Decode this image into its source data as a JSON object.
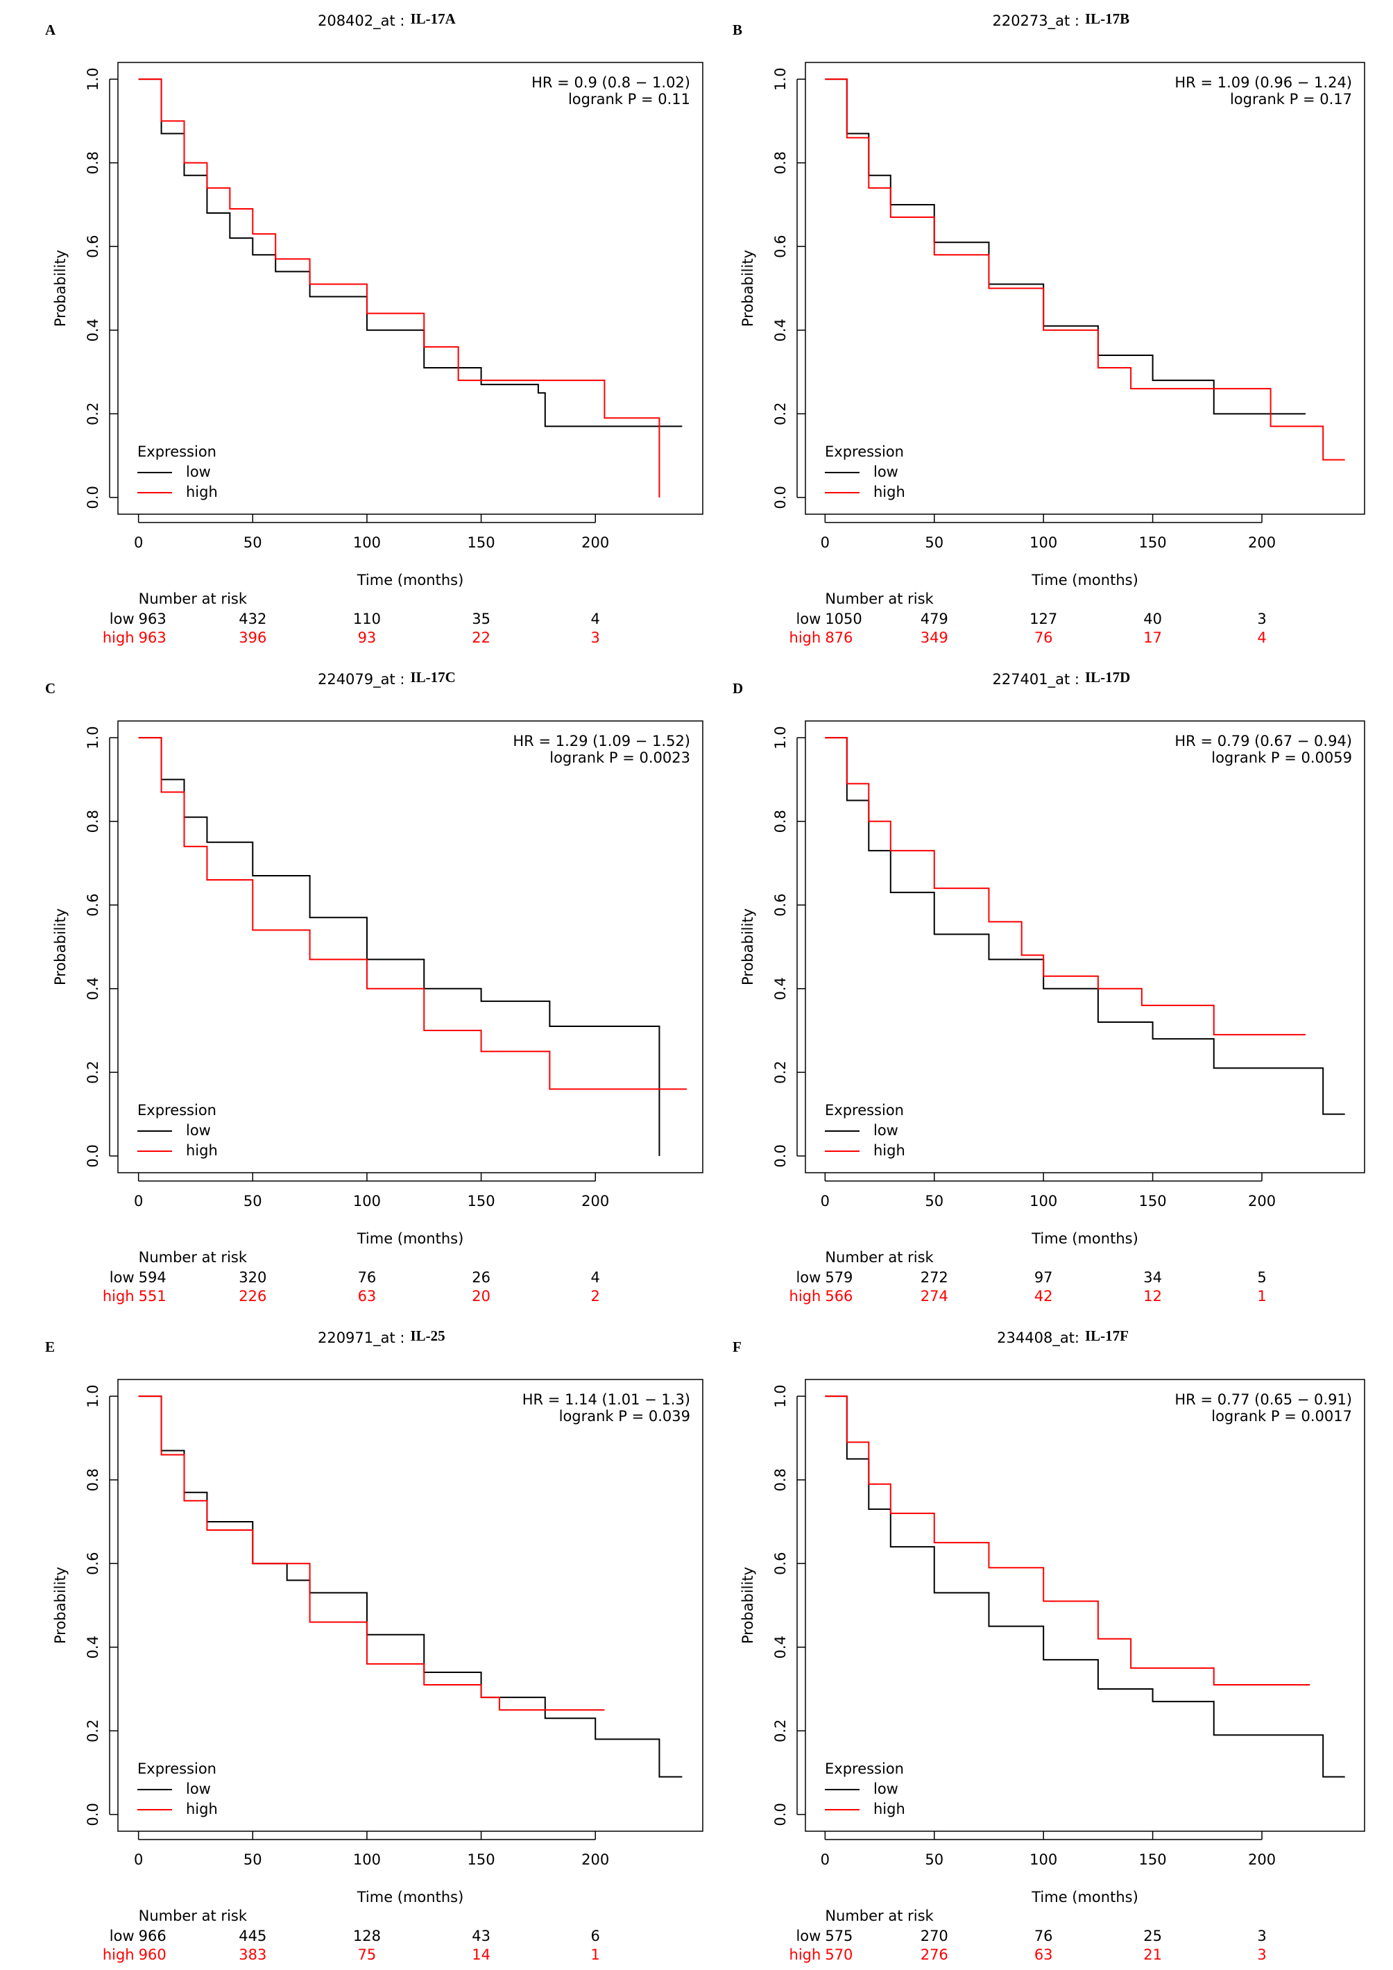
{
  "chart_data": [
    {
      "type": "line",
      "step": "post",
      "panel": "A",
      "probe": "208402_at :",
      "gene": "IL-17A",
      "annotations": [
        "HR = 0.9 (0.8 − 1.02)",
        "logrank P = 0.11"
      ],
      "xlabel": "Time (months)",
      "ylabel": "Probability",
      "legend_title": "Expression",
      "legend": "bottomleft",
      "risk_title": "Number at risk",
      "xlim": [
        -9,
        247
      ],
      "ylim": [
        -0.04,
        1.04
      ],
      "xticks": [
        0,
        50,
        100,
        150,
        200
      ],
      "yticks": [
        {
          "value": 0,
          "label": "0.0"
        },
        0.2,
        0.4,
        0.6,
        0.8,
        {
          "value": 1,
          "label": "1.0"
        }
      ],
      "series": [
        {
          "name": "low",
          "color": "#000000",
          "x": [
            0,
            10,
            20,
            30,
            40,
            50,
            60,
            75,
            100,
            125,
            150,
            175,
            178,
            238
          ],
          "values": [
            1,
            0.87,
            0.77,
            0.68,
            0.62,
            0.58,
            0.54,
            0.48,
            0.4,
            0.31,
            0.27,
            0.25,
            0.17,
            0.17
          ],
          "at_risk": [
            963,
            432,
            110,
            35,
            4
          ]
        },
        {
          "name": "high",
          "color": "#ff0000",
          "x": [
            0,
            10,
            20,
            30,
            40,
            50,
            60,
            75,
            100,
            125,
            140,
            204,
            204,
            228,
            228
          ],
          "values": [
            1,
            0.9,
            0.8,
            0.74,
            0.69,
            0.63,
            0.57,
            0.51,
            0.44,
            0.36,
            0.28,
            0.28,
            0.19,
            0.19,
            0
          ],
          "at_risk": [
            963,
            396,
            93,
            22,
            3
          ]
        }
      ]
    },
    {
      "type": "line",
      "step": "post",
      "panel": "B",
      "probe": "220273_at :",
      "gene": "IL-17B",
      "annotations": [
        "HR = 1.09 (0.96 − 1.24)",
        "logrank P = 0.17"
      ],
      "xlabel": "Time (months)",
      "ylabel": "Probability",
      "legend_title": "Expression",
      "legend": "bottomleft",
      "risk_title": "Number at risk",
      "xlim": [
        -9,
        247
      ],
      "ylim": [
        -0.04,
        1.04
      ],
      "xticks": [
        0,
        50,
        100,
        150,
        200
      ],
      "yticks": [
        {
          "value": 0,
          "label": "0.0"
        },
        0.2,
        0.4,
        0.6,
        0.8,
        {
          "value": 1,
          "label": "1.0"
        }
      ],
      "series": [
        {
          "name": "low",
          "color": "#000000",
          "x": [
            0,
            10,
            20,
            30,
            50,
            75,
            100,
            125,
            150,
            175,
            178,
            220
          ],
          "values": [
            1,
            0.87,
            0.77,
            0.7,
            0.61,
            0.51,
            0.41,
            0.34,
            0.28,
            0.28,
            0.2,
            0.2
          ],
          "at_risk": [
            1050,
            479,
            127,
            40,
            3
          ]
        },
        {
          "name": "high",
          "color": "#ff0000",
          "x": [
            0,
            10,
            20,
            30,
            50,
            75,
            100,
            125,
            140,
            175,
            204,
            204,
            228,
            228,
            238
          ],
          "values": [
            1,
            0.86,
            0.74,
            0.67,
            0.58,
            0.5,
            0.4,
            0.31,
            0.26,
            0.26,
            0.26,
            0.17,
            0.17,
            0.09,
            0.09
          ],
          "at_risk": [
            876,
            349,
            76,
            17,
            4
          ]
        }
      ]
    },
    {
      "type": "line",
      "step": "post",
      "panel": "C",
      "probe": "224079_at :",
      "gene": "IL-17C",
      "annotations": [
        "HR = 1.29 (1.09 − 1.52)",
        "logrank P = 0.0023"
      ],
      "xlabel": "Time (months)",
      "ylabel": "Probability",
      "legend_title": "Expression",
      "legend": "bottomleft",
      "risk_title": "Number at risk",
      "xlim": [
        -9,
        247
      ],
      "ylim": [
        -0.04,
        1.04
      ],
      "xticks": [
        0,
        50,
        100,
        150,
        200
      ],
      "yticks": [
        {
          "value": 0,
          "label": "0.0"
        },
        0.2,
        0.4,
        0.6,
        0.8,
        {
          "value": 1,
          "label": "1.0"
        }
      ],
      "series": [
        {
          "name": "low",
          "color": "#000000",
          "x": [
            0,
            10,
            20,
            30,
            50,
            75,
            100,
            125,
            150,
            175,
            180,
            228,
            228
          ],
          "values": [
            1,
            0.9,
            0.81,
            0.75,
            0.67,
            0.57,
            0.47,
            0.4,
            0.37,
            0.37,
            0.31,
            0.31,
            0
          ],
          "at_risk": [
            594,
            320,
            76,
            26,
            4
          ]
        },
        {
          "name": "high",
          "color": "#ff0000",
          "x": [
            0,
            10,
            20,
            30,
            50,
            75,
            100,
            125,
            150,
            175,
            180,
            240
          ],
          "values": [
            1,
            0.87,
            0.74,
            0.66,
            0.54,
            0.47,
            0.4,
            0.3,
            0.25,
            0.25,
            0.16,
            0.16
          ],
          "at_risk": [
            551,
            226,
            63,
            20,
            2
          ]
        }
      ]
    },
    {
      "type": "line",
      "step": "post",
      "panel": "D",
      "probe": "227401_at :",
      "gene": "IL-17D",
      "annotations": [
        "HR = 0.79 (0.67 − 0.94)",
        "logrank P = 0.0059"
      ],
      "xlabel": "Time (months)",
      "ylabel": "Probability",
      "legend_title": "Expression",
      "legend": "bottomleft",
      "risk_title": "Number at risk",
      "xlim": [
        -9,
        247
      ],
      "ylim": [
        -0.04,
        1.04
      ],
      "xticks": [
        0,
        50,
        100,
        150,
        200
      ],
      "yticks": [
        {
          "value": 0,
          "label": "0.0"
        },
        0.2,
        0.4,
        0.6,
        0.8,
        {
          "value": 1,
          "label": "1.0"
        }
      ],
      "series": [
        {
          "name": "low",
          "color": "#000000",
          "x": [
            0,
            10,
            20,
            30,
            50,
            75,
            100,
            125,
            150,
            175,
            178,
            228,
            228,
            238
          ],
          "values": [
            1,
            0.85,
            0.73,
            0.63,
            0.53,
            0.47,
            0.4,
            0.32,
            0.28,
            0.28,
            0.21,
            0.21,
            0.1,
            0.1
          ],
          "at_risk": [
            579,
            272,
            97,
            34,
            5
          ]
        },
        {
          "name": "high",
          "color": "#ff0000",
          "x": [
            0,
            10,
            20,
            30,
            50,
            75,
            90,
            100,
            125,
            145,
            178,
            178,
            220
          ],
          "values": [
            1,
            0.89,
            0.8,
            0.73,
            0.64,
            0.56,
            0.48,
            0.43,
            0.4,
            0.36,
            0.36,
            0.29,
            0.29
          ],
          "at_risk": [
            566,
            274,
            42,
            12,
            1
          ]
        }
      ]
    },
    {
      "type": "line",
      "step": "post",
      "panel": "E",
      "probe": "220971_at :",
      "gene": "IL-25",
      "annotations": [
        "HR = 1.14 (1.01 − 1.3)",
        "logrank P = 0.039"
      ],
      "xlabel": "Time (months)",
      "ylabel": "Probability",
      "legend_title": "Expression",
      "legend": "bottomleft",
      "risk_title": "Number at risk",
      "xlim": [
        -9,
        247
      ],
      "ylim": [
        -0.04,
        1.04
      ],
      "xticks": [
        0,
        50,
        100,
        150,
        200
      ],
      "yticks": [
        {
          "value": 0,
          "label": "0.0"
        },
        0.2,
        0.4,
        0.6,
        0.8,
        {
          "value": 1,
          "label": "1.0"
        }
      ],
      "series": [
        {
          "name": "low",
          "color": "#000000",
          "x": [
            0,
            10,
            20,
            30,
            50,
            65,
            75,
            100,
            125,
            150,
            175,
            178,
            200,
            200,
            228,
            228,
            238
          ],
          "values": [
            1,
            0.87,
            0.77,
            0.7,
            0.6,
            0.56,
            0.53,
            0.43,
            0.34,
            0.28,
            0.28,
            0.23,
            0.23,
            0.18,
            0.18,
            0.09,
            0.09
          ],
          "at_risk": [
            966,
            445,
            128,
            43,
            6
          ]
        },
        {
          "name": "high",
          "color": "#ff0000",
          "x": [
            0,
            10,
            20,
            30,
            50,
            75,
            100,
            125,
            150,
            158,
            204
          ],
          "values": [
            1,
            0.86,
            0.75,
            0.68,
            0.6,
            0.46,
            0.36,
            0.31,
            0.28,
            0.25,
            0.25
          ],
          "at_risk": [
            960,
            383,
            75,
            14,
            1
          ]
        }
      ]
    },
    {
      "type": "line",
      "step": "post",
      "panel": "F",
      "probe": "234408_at:",
      "gene": "IL-17F",
      "annotations": [
        "HR = 0.77 (0.65 − 0.91)",
        "logrank P = 0.0017"
      ],
      "xlabel": "Time (months)",
      "ylabel": "Probability",
      "legend_title": "Expression",
      "legend": "bottomleft",
      "risk_title": "Number at risk",
      "xlim": [
        -9,
        247
      ],
      "ylim": [
        -0.04,
        1.04
      ],
      "xticks": [
        0,
        50,
        100,
        150,
        200
      ],
      "yticks": [
        {
          "value": 0,
          "label": "0.0"
        },
        0.2,
        0.4,
        0.6,
        0.8,
        {
          "value": 1,
          "label": "1.0"
        }
      ],
      "series": [
        {
          "name": "low",
          "color": "#000000",
          "x": [
            0,
            10,
            20,
            30,
            50,
            75,
            100,
            125,
            150,
            175,
            178,
            228,
            228,
            238
          ],
          "values": [
            1,
            0.85,
            0.73,
            0.64,
            0.53,
            0.45,
            0.37,
            0.3,
            0.27,
            0.27,
            0.19,
            0.19,
            0.09,
            0.09
          ],
          "at_risk": [
            575,
            270,
            76,
            25,
            3
          ]
        },
        {
          "name": "high",
          "color": "#ff0000",
          "x": [
            0,
            10,
            20,
            30,
            50,
            75,
            100,
            125,
            140,
            175,
            178,
            222
          ],
          "values": [
            1,
            0.89,
            0.79,
            0.72,
            0.65,
            0.59,
            0.51,
            0.42,
            0.35,
            0.35,
            0.31,
            0.31
          ],
          "at_risk": [
            570,
            276,
            63,
            21,
            3
          ]
        }
      ]
    }
  ]
}
